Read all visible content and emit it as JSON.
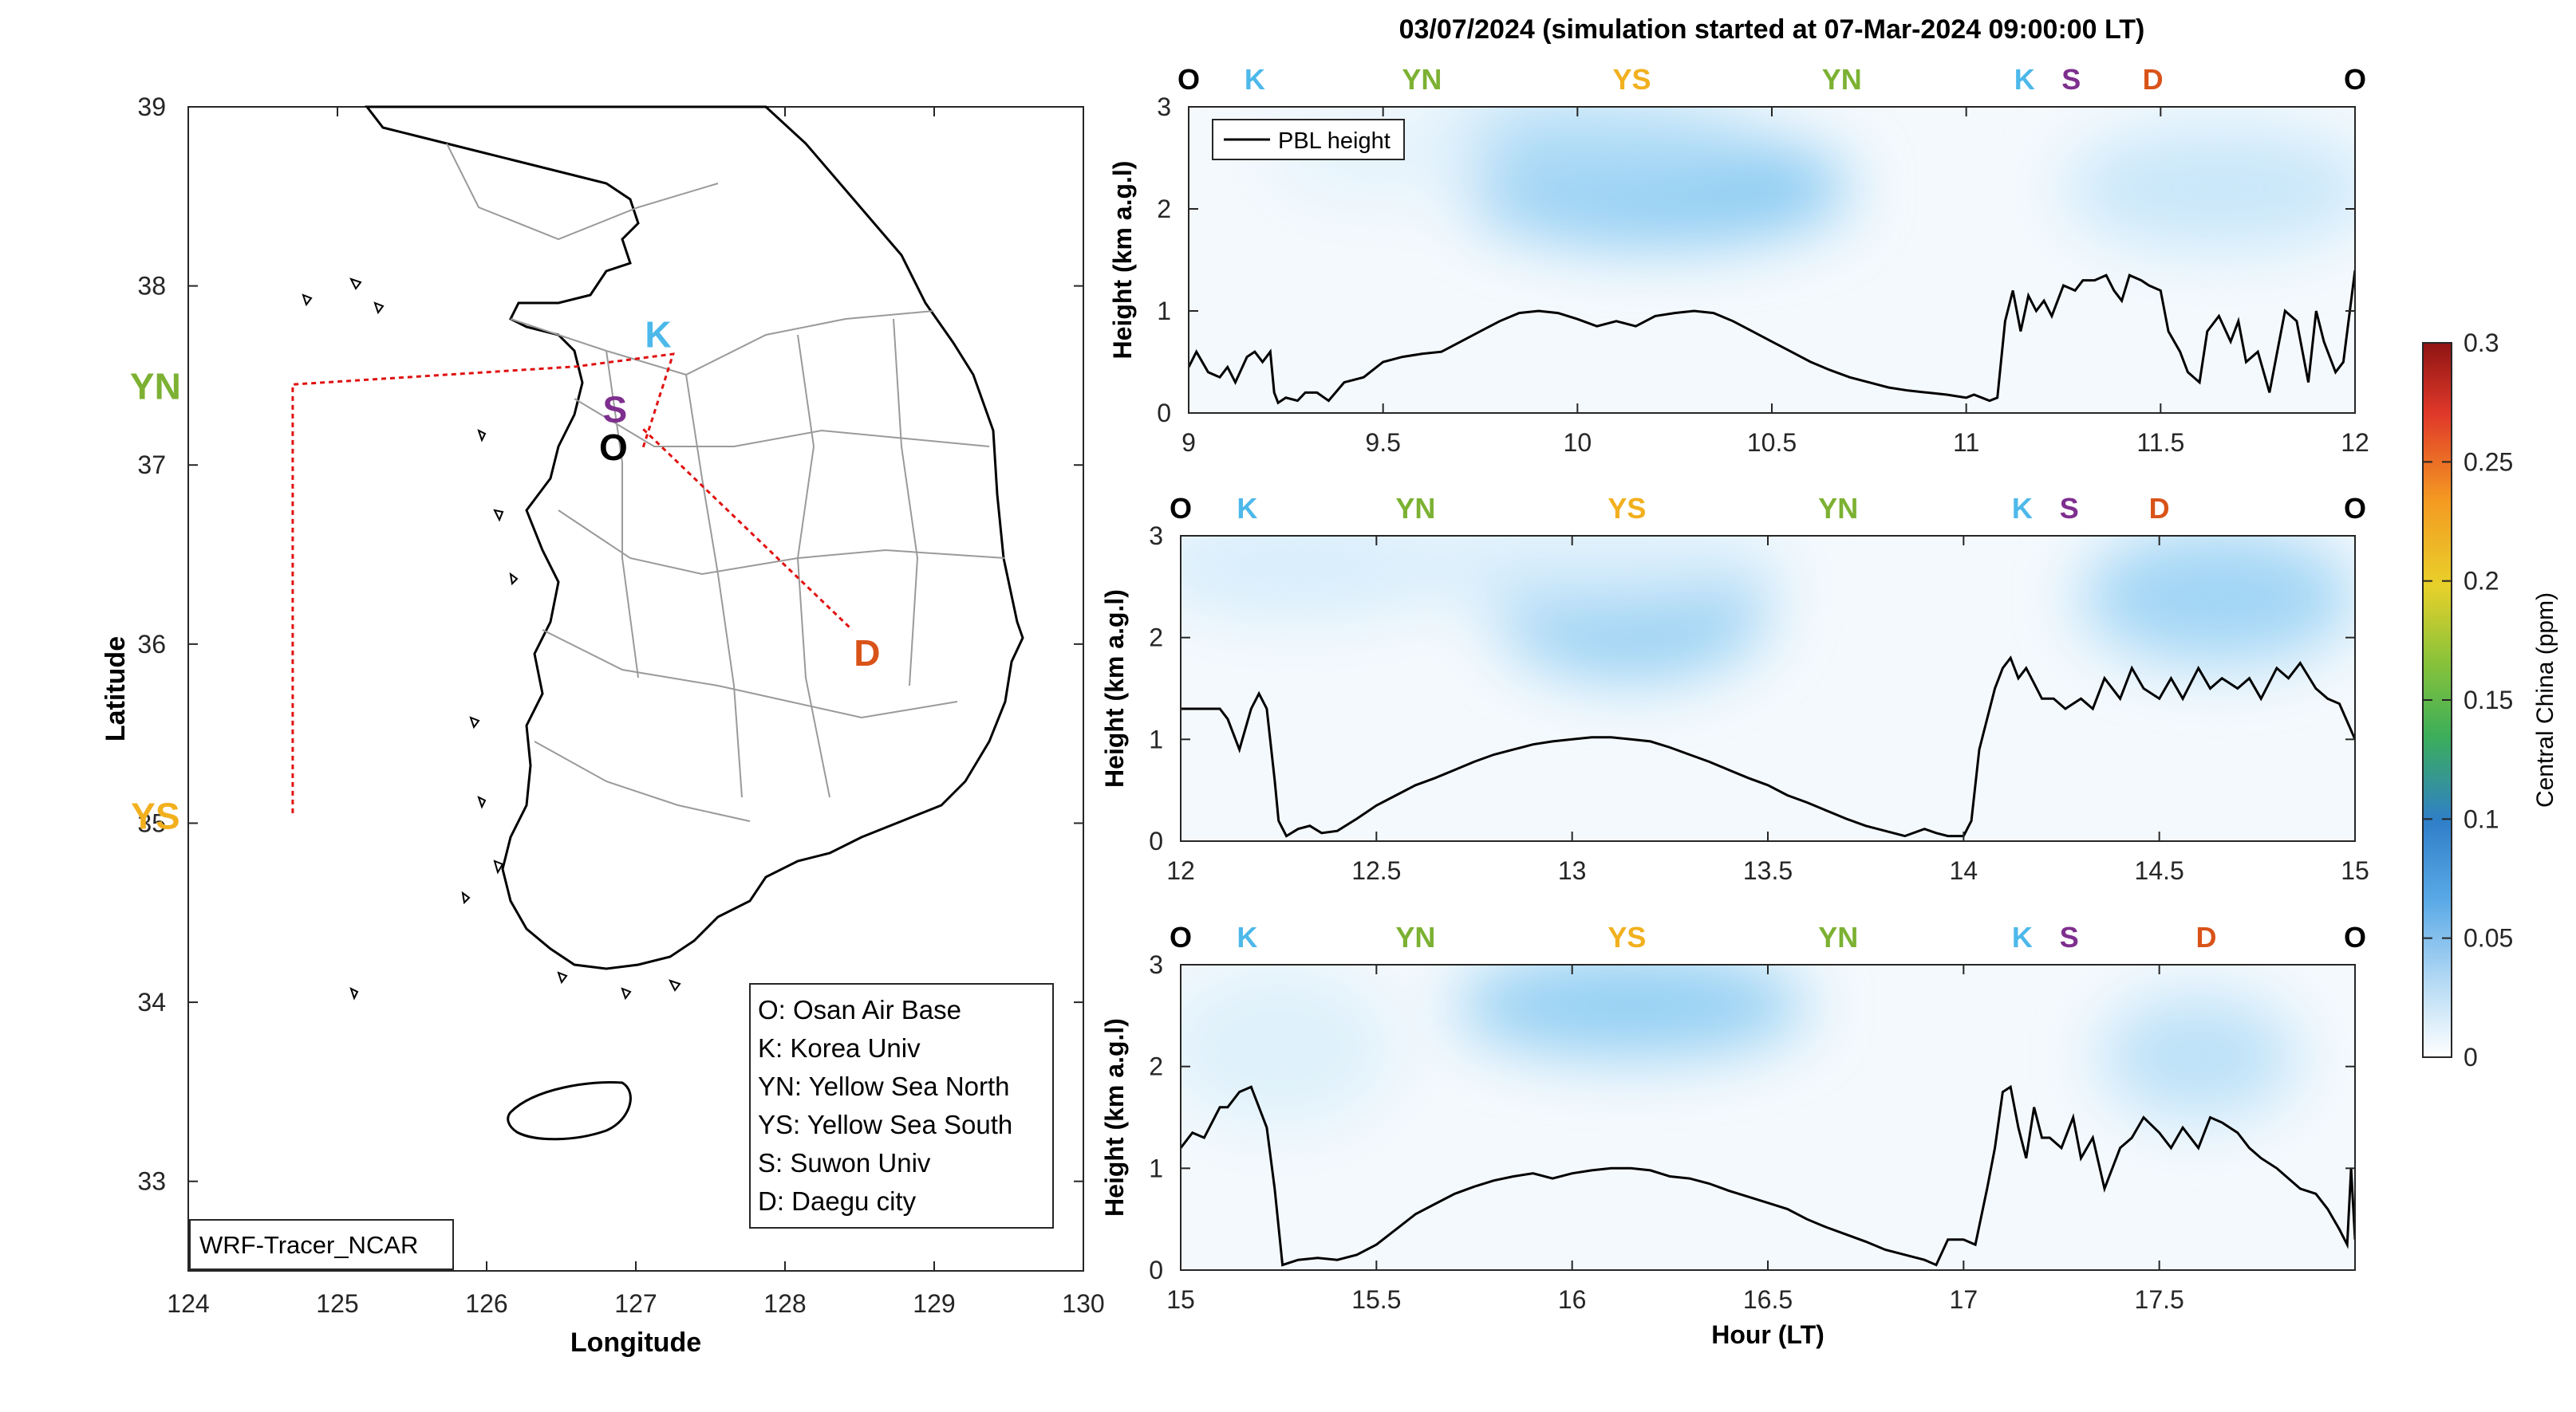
{
  "figure": {
    "title": "03/07/2024 (simulation started at 07-Mar-2024 09:00:00 LT)"
  },
  "colors": {
    "O": "#000000",
    "K": "#4db8ea",
    "YN": "#7cb133",
    "YS": "#f2b01e",
    "S": "#7e2f8e",
    "D": "#d95319",
    "route": "#e01010",
    "tracer": "#3aa6ee"
  },
  "map": {
    "xlabel": "Longitude",
    "ylabel": "Latitude",
    "xticks": [
      "124",
      "125",
      "126",
      "127",
      "128",
      "129",
      "130"
    ],
    "yticks": [
      "33",
      "34",
      "35",
      "36",
      "37",
      "38",
      "39"
    ],
    "xlim": [
      124,
      130
    ],
    "ylim": [
      32.5,
      39
    ],
    "model_label": "WRF-Tracer_NCAR",
    "legend": [
      "O: Osan Air Base",
      "K: Korea Univ",
      "YN: Yellow Sea North",
      "YS: Yellow Sea South",
      "S: Suwon Univ",
      "D: Daegu city"
    ],
    "sites": [
      {
        "code": "K",
        "lon": 127.15,
        "lat": 37.73
      },
      {
        "code": "S",
        "lon": 126.86,
        "lat": 37.31
      },
      {
        "code": "O",
        "lon": 126.85,
        "lat": 37.1
      },
      {
        "code": "YN",
        "lon": 123.78,
        "lat": 37.44
      },
      {
        "code": "YS",
        "lon": 123.78,
        "lat": 35.04
      },
      {
        "code": "D",
        "lon": 128.55,
        "lat": 35.95
      }
    ],
    "route": [
      [
        127.05,
        37.1
      ],
      [
        127.25,
        37.62
      ],
      [
        126.6,
        37.55
      ],
      [
        124.7,
        37.45
      ],
      [
        124.7,
        35.05
      ]
    ],
    "route2": [
      [
        127.05,
        37.2
      ],
      [
        128.45,
        36.08
      ]
    ]
  },
  "colorbar": {
    "label": "Central China (ppm)",
    "ticks": [
      "0",
      "0.05",
      "0.1",
      "0.15",
      "0.2",
      "0.25",
      "0.3"
    ]
  },
  "chart_data": [
    {
      "type": "line",
      "panel": "top",
      "xlim": [
        9,
        12
      ],
      "ylim": [
        0,
        3
      ],
      "ylabel": "Height (km a.g.l)",
      "xticks": [
        "9",
        "9.5",
        "10",
        "10.5",
        "11",
        "11.5",
        "12"
      ],
      "yticks": [
        "0",
        "1",
        "2",
        "3"
      ],
      "legend": "PBL height",
      "site_labels": [
        {
          "code": "O",
          "x": 9.0
        },
        {
          "code": "K",
          "x": 9.17
        },
        {
          "code": "YN",
          "x": 9.6
        },
        {
          "code": "YS",
          "x": 10.14
        },
        {
          "code": "YN",
          "x": 10.68
        },
        {
          "code": "K",
          "x": 11.15
        },
        {
          "code": "S",
          "x": 11.27
        },
        {
          "code": "D",
          "x": 11.48
        },
        {
          "code": "O",
          "x": 12.0
        }
      ],
      "tracer_blobs": [
        {
          "x": 10.2,
          "y": 2.2,
          "rx": 0.5,
          "ry": 0.55,
          "v": 0.045
        },
        {
          "x": 10.0,
          "y": 2.6,
          "rx": 0.5,
          "ry": 0.45,
          "v": 0.03
        },
        {
          "x": 11.65,
          "y": 2.2,
          "rx": 0.4,
          "ry": 0.6,
          "v": 0.02
        },
        {
          "x": 9.5,
          "y": 2.5,
          "rx": 0.3,
          "ry": 0.4,
          "v": 0.01
        }
      ],
      "series": [
        {
          "name": "PBL height",
          "x": [
            9.0,
            9.02,
            9.05,
            9.08,
            9.1,
            9.12,
            9.15,
            9.17,
            9.19,
            9.21,
            9.22,
            9.23,
            9.25,
            9.28,
            9.3,
            9.33,
            9.36,
            9.4,
            9.45,
            9.5,
            9.55,
            9.6,
            9.65,
            9.7,
            9.75,
            9.8,
            9.85,
            9.9,
            9.95,
            10.0,
            10.05,
            10.1,
            10.15,
            10.2,
            10.25,
            10.3,
            10.35,
            10.4,
            10.45,
            10.5,
            10.55,
            10.6,
            10.65,
            10.7,
            10.75,
            10.8,
            10.85,
            10.9,
            10.95,
            11.0,
            11.02,
            11.04,
            11.06,
            11.08,
            11.1,
            11.12,
            11.14,
            11.16,
            11.18,
            11.2,
            11.22,
            11.25,
            11.28,
            11.3,
            11.33,
            11.36,
            11.38,
            11.4,
            11.42,
            11.45,
            11.47,
            11.5,
            11.52,
            11.55,
            11.57,
            11.6,
            11.62,
            11.65,
            11.68,
            11.7,
            11.72,
            11.75,
            11.78,
            11.8,
            11.82,
            11.85,
            11.88,
            11.9,
            11.92,
            11.95,
            11.97,
            12.0
          ],
          "y": [
            0.45,
            0.6,
            0.4,
            0.35,
            0.45,
            0.3,
            0.55,
            0.6,
            0.5,
            0.6,
            0.2,
            0.1,
            0.15,
            0.12,
            0.2,
            0.2,
            0.12,
            0.3,
            0.35,
            0.5,
            0.55,
            0.58,
            0.6,
            0.7,
            0.8,
            0.9,
            0.98,
            1.0,
            0.98,
            0.92,
            0.85,
            0.9,
            0.85,
            0.95,
            0.98,
            1.0,
            0.98,
            0.9,
            0.8,
            0.7,
            0.6,
            0.5,
            0.42,
            0.35,
            0.3,
            0.25,
            0.22,
            0.2,
            0.18,
            0.15,
            0.18,
            0.15,
            0.12,
            0.15,
            0.9,
            1.2,
            0.8,
            1.15,
            1.0,
            1.1,
            0.95,
            1.25,
            1.2,
            1.3,
            1.3,
            1.35,
            1.2,
            1.1,
            1.35,
            1.3,
            1.25,
            1.2,
            0.8,
            0.6,
            0.4,
            0.3,
            0.8,
            0.95,
            0.7,
            0.9,
            0.5,
            0.6,
            0.2,
            0.6,
            1.0,
            0.9,
            0.3,
            1.0,
            0.7,
            0.4,
            0.5,
            1.4
          ],
          "color": "#000000"
        }
      ]
    },
    {
      "type": "line",
      "panel": "middle",
      "xlim": [
        12,
        15
      ],
      "ylim": [
        0,
        3
      ],
      "ylabel": "Height (km a.g.l)",
      "xticks": [
        "12",
        "12.5",
        "13",
        "13.5",
        "14",
        "14.5",
        "15"
      ],
      "yticks": [
        "0",
        "1",
        "2",
        "3"
      ],
      "site_labels": [
        {
          "code": "O",
          "x": 12.0
        },
        {
          "code": "K",
          "x": 12.17
        },
        {
          "code": "YN",
          "x": 12.6
        },
        {
          "code": "YS",
          "x": 13.14
        },
        {
          "code": "YN",
          "x": 13.68
        },
        {
          "code": "K",
          "x": 14.15
        },
        {
          "code": "S",
          "x": 14.27
        },
        {
          "code": "D",
          "x": 14.5
        },
        {
          "code": "O",
          "x": 15.0
        }
      ],
      "tracer_blobs": [
        {
          "x": 13.15,
          "y": 2.3,
          "rx": 0.35,
          "ry": 0.7,
          "v": 0.04
        },
        {
          "x": 14.65,
          "y": 2.4,
          "rx": 0.35,
          "ry": 0.65,
          "v": 0.035
        },
        {
          "x": 12.3,
          "y": 2.7,
          "rx": 0.4,
          "ry": 0.5,
          "v": 0.015
        },
        {
          "x": 13.0,
          "y": 2.7,
          "rx": 0.55,
          "ry": 0.4,
          "v": 0.015
        }
      ],
      "series": [
        {
          "name": "PBL height",
          "x": [
            12.0,
            12.05,
            12.1,
            12.12,
            12.15,
            12.18,
            12.2,
            12.22,
            12.24,
            12.25,
            12.27,
            12.3,
            12.33,
            12.36,
            12.4,
            12.45,
            12.5,
            12.55,
            12.6,
            12.65,
            12.7,
            12.75,
            12.8,
            12.85,
            12.9,
            12.95,
            13.0,
            13.05,
            13.1,
            13.15,
            13.2,
            13.25,
            13.3,
            13.35,
            13.4,
            13.45,
            13.5,
            13.55,
            13.6,
            13.65,
            13.7,
            13.75,
            13.8,
            13.85,
            13.9,
            13.93,
            13.96,
            13.98,
            14.0,
            14.02,
            14.04,
            14.06,
            14.08,
            14.1,
            14.12,
            14.14,
            14.16,
            14.18,
            14.2,
            14.23,
            14.26,
            14.3,
            14.33,
            14.36,
            14.4,
            14.43,
            14.46,
            14.5,
            14.53,
            14.56,
            14.6,
            14.63,
            14.66,
            14.7,
            14.73,
            14.76,
            14.8,
            14.83,
            14.86,
            14.9,
            14.93,
            14.96,
            15.0
          ],
          "y": [
            1.3,
            1.3,
            1.3,
            1.2,
            0.9,
            1.3,
            1.45,
            1.3,
            0.6,
            0.2,
            0.05,
            0.12,
            0.15,
            0.08,
            0.1,
            0.22,
            0.35,
            0.45,
            0.55,
            0.62,
            0.7,
            0.78,
            0.85,
            0.9,
            0.95,
            0.98,
            1.0,
            1.02,
            1.02,
            1.0,
            0.98,
            0.92,
            0.85,
            0.78,
            0.7,
            0.62,
            0.55,
            0.45,
            0.38,
            0.3,
            0.22,
            0.15,
            0.1,
            0.05,
            0.12,
            0.08,
            0.05,
            0.05,
            0.05,
            0.2,
            0.9,
            1.2,
            1.5,
            1.7,
            1.8,
            1.6,
            1.7,
            1.55,
            1.4,
            1.4,
            1.3,
            1.4,
            1.3,
            1.6,
            1.4,
            1.7,
            1.5,
            1.4,
            1.6,
            1.4,
            1.7,
            1.5,
            1.6,
            1.5,
            1.6,
            1.4,
            1.7,
            1.6,
            1.75,
            1.5,
            1.4,
            1.35,
            1.0
          ],
          "color": "#000000"
        }
      ]
    },
    {
      "type": "line",
      "panel": "bottom",
      "xlim": [
        15,
        18
      ],
      "ylim": [
        0,
        3
      ],
      "ylabel": "Height (km a.g.l)",
      "xlabel": "Hour (LT)",
      "xticks": [
        "15",
        "15.5",
        "16",
        "16.5",
        "17",
        "17.5"
      ],
      "yticks": [
        "0",
        "1",
        "2",
        "3"
      ],
      "site_labels": [
        {
          "code": "O",
          "x": 15.0
        },
        {
          "code": "K",
          "x": 15.17
        },
        {
          "code": "YN",
          "x": 15.6
        },
        {
          "code": "YS",
          "x": 16.14
        },
        {
          "code": "YN",
          "x": 16.68
        },
        {
          "code": "K",
          "x": 17.15
        },
        {
          "code": "S",
          "x": 17.27
        },
        {
          "code": "D",
          "x": 17.62
        },
        {
          "code": "O",
          "x": 18.0
        }
      ],
      "tracer_blobs": [
        {
          "x": 16.15,
          "y": 2.6,
          "rx": 0.45,
          "ry": 0.5,
          "v": 0.04
        },
        {
          "x": 17.6,
          "y": 2.1,
          "rx": 0.25,
          "ry": 0.6,
          "v": 0.025
        },
        {
          "x": 15.25,
          "y": 2.2,
          "rx": 0.3,
          "ry": 0.8,
          "v": 0.012
        }
      ],
      "series": [
        {
          "name": "PBL height",
          "x": [
            15.0,
            15.03,
            15.06,
            15.1,
            15.12,
            15.15,
            15.18,
            15.2,
            15.22,
            15.24,
            15.26,
            15.3,
            15.35,
            15.4,
            15.45,
            15.5,
            15.55,
            15.6,
            15.65,
            15.7,
            15.75,
            15.8,
            15.85,
            15.9,
            15.95,
            16.0,
            16.05,
            16.1,
            16.15,
            16.2,
            16.25,
            16.3,
            16.35,
            16.4,
            16.45,
            16.5,
            16.55,
            16.6,
            16.65,
            16.7,
            16.75,
            16.8,
            16.85,
            16.9,
            16.93,
            16.96,
            17.0,
            17.03,
            17.06,
            17.08,
            17.1,
            17.12,
            17.14,
            17.16,
            17.18,
            17.2,
            17.22,
            17.25,
            17.28,
            17.3,
            17.33,
            17.36,
            17.4,
            17.43,
            17.46,
            17.5,
            17.53,
            17.56,
            17.6,
            17.63,
            17.66,
            17.7,
            17.73,
            17.76,
            17.8,
            17.83,
            17.86,
            17.9,
            17.93,
            17.96,
            17.98,
            17.99,
            18.0
          ],
          "y": [
            1.2,
            1.35,
            1.3,
            1.6,
            1.6,
            1.75,
            1.8,
            1.6,
            1.4,
            0.8,
            0.05,
            0.1,
            0.12,
            0.1,
            0.15,
            0.25,
            0.4,
            0.55,
            0.65,
            0.75,
            0.82,
            0.88,
            0.92,
            0.95,
            0.9,
            0.95,
            0.98,
            1.0,
            1.0,
            0.98,
            0.92,
            0.9,
            0.85,
            0.78,
            0.72,
            0.66,
            0.6,
            0.5,
            0.42,
            0.35,
            0.28,
            0.2,
            0.15,
            0.1,
            0.05,
            0.3,
            0.3,
            0.25,
            0.8,
            1.2,
            1.75,
            1.8,
            1.4,
            1.1,
            1.6,
            1.3,
            1.3,
            1.2,
            1.5,
            1.1,
            1.3,
            0.8,
            1.2,
            1.3,
            1.5,
            1.35,
            1.2,
            1.4,
            1.2,
            1.5,
            1.45,
            1.35,
            1.2,
            1.1,
            1.0,
            0.9,
            0.8,
            0.75,
            0.6,
            0.4,
            0.25,
            1.0,
            0.3
          ],
          "color": "#000000"
        }
      ]
    }
  ]
}
